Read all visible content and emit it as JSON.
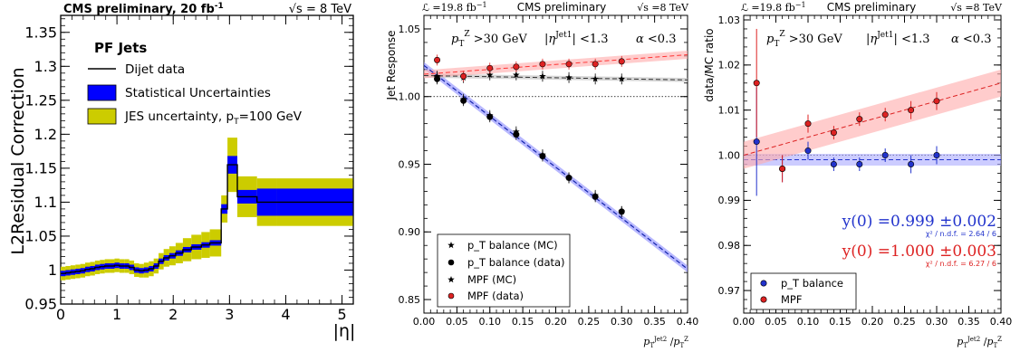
{
  "chart_data": [
    {
      "type": "line",
      "title_left": "CMS preliminary, 20 fb",
      "title_left_sup": "-1",
      "title_right": "√s = 8 TeV",
      "ylabel": "L2Residual Correction",
      "xlabel": "|η|",
      "xlim": [
        0,
        5.2
      ],
      "ylim": [
        0.95,
        1.375
      ],
      "xticks": [
        "0",
        "1",
        "2",
        "3",
        "4",
        "5"
      ],
      "yticks": [
        "0.95",
        "1",
        "1.05",
        "1.1",
        "1.15",
        "1.2",
        "1.25",
        "1.3",
        "1.35"
      ],
      "legend_header": "PF Jets",
      "legend": [
        "Dijet data",
        "Statistical Uncertainties",
        "JES uncertainty, p",
        "T",
        "=100 GeV"
      ],
      "colors": {
        "data": "#000000",
        "stat": "#0000ff",
        "jes": "#cccc00"
      },
      "bins": [
        {
          "lo": 0.0,
          "hi": 0.087,
          "v": 0.995,
          "s": 0.004,
          "j": 0.01
        },
        {
          "lo": 0.087,
          "hi": 0.174,
          "v": 0.996,
          "s": 0.004,
          "j": 0.01
        },
        {
          "lo": 0.174,
          "hi": 0.261,
          "v": 0.997,
          "s": 0.004,
          "j": 0.01
        },
        {
          "lo": 0.261,
          "hi": 0.348,
          "v": 0.998,
          "s": 0.004,
          "j": 0.01
        },
        {
          "lo": 0.348,
          "hi": 0.435,
          "v": 0.999,
          "s": 0.004,
          "j": 0.01
        },
        {
          "lo": 0.435,
          "hi": 0.522,
          "v": 1.001,
          "s": 0.004,
          "j": 0.01
        },
        {
          "lo": 0.522,
          "hi": 0.609,
          "v": 1.002,
          "s": 0.004,
          "j": 0.01
        },
        {
          "lo": 0.609,
          "hi": 0.696,
          "v": 1.004,
          "s": 0.004,
          "j": 0.01
        },
        {
          "lo": 0.696,
          "hi": 0.783,
          "v": 1.005,
          "s": 0.004,
          "j": 0.01
        },
        {
          "lo": 0.783,
          "hi": 0.87,
          "v": 1.006,
          "s": 0.004,
          "j": 0.01
        },
        {
          "lo": 0.87,
          "hi": 0.957,
          "v": 1.006,
          "s": 0.004,
          "j": 0.01
        },
        {
          "lo": 0.957,
          "hi": 1.044,
          "v": 1.007,
          "s": 0.004,
          "j": 0.01
        },
        {
          "lo": 1.044,
          "hi": 1.131,
          "v": 1.006,
          "s": 0.004,
          "j": 0.01
        },
        {
          "lo": 1.131,
          "hi": 1.218,
          "v": 1.006,
          "s": 0.004,
          "j": 0.01
        },
        {
          "lo": 1.218,
          "hi": 1.305,
          "v": 1.004,
          "s": 0.004,
          "j": 0.01
        },
        {
          "lo": 1.305,
          "hi": 1.392,
          "v": 1.0,
          "s": 0.004,
          "j": 0.01
        },
        {
          "lo": 1.392,
          "hi": 1.479,
          "v": 0.999,
          "s": 0.004,
          "j": 0.01
        },
        {
          "lo": 1.479,
          "hi": 1.566,
          "v": 1.0,
          "s": 0.004,
          "j": 0.011
        },
        {
          "lo": 1.566,
          "hi": 1.653,
          "v": 1.002,
          "s": 0.004,
          "j": 0.011
        },
        {
          "lo": 1.653,
          "hi": 1.74,
          "v": 1.006,
          "s": 0.004,
          "j": 0.011
        },
        {
          "lo": 1.74,
          "hi": 1.83,
          "v": 1.013,
          "s": 0.004,
          "j": 0.012
        },
        {
          "lo": 1.83,
          "hi": 1.93,
          "v": 1.018,
          "s": 0.004,
          "j": 0.013
        },
        {
          "lo": 1.93,
          "hi": 2.043,
          "v": 1.021,
          "s": 0.004,
          "j": 0.014
        },
        {
          "lo": 2.043,
          "hi": 2.172,
          "v": 1.025,
          "s": 0.004,
          "j": 0.015
        },
        {
          "lo": 2.172,
          "hi": 2.322,
          "v": 1.03,
          "s": 0.004,
          "j": 0.017
        },
        {
          "lo": 2.322,
          "hi": 2.5,
          "v": 1.034,
          "s": 0.004,
          "j": 0.018
        },
        {
          "lo": 2.5,
          "hi": 2.65,
          "v": 1.037,
          "s": 0.004,
          "j": 0.019
        },
        {
          "lo": 2.65,
          "hi": 2.853,
          "v": 1.04,
          "s": 0.004,
          "j": 0.02
        },
        {
          "lo": 2.853,
          "hi": 2.964,
          "v": 1.09,
          "s": 0.007,
          "j": 0.02
        },
        {
          "lo": 2.964,
          "hi": 3.139,
          "v": 1.155,
          "s": 0.013,
          "j": 0.04
        },
        {
          "lo": 3.139,
          "hi": 3.489,
          "v": 1.108,
          "s": 0.01,
          "j": 0.03
        },
        {
          "lo": 3.489,
          "hi": 3.839,
          "v": 1.1,
          "s": 0.02,
          "j": 0.035
        },
        {
          "lo": 3.839,
          "hi": 5.191,
          "v": 1.1,
          "s": 0.02,
          "j": 0.035
        }
      ]
    },
    {
      "type": "scatter",
      "header_left": "ℒ =19.8 fb",
      "header_left_sup": "−1",
      "header_center": "CMS preliminary",
      "header_right": "√s =8 TeV",
      "ylabel": "Jet Response",
      "cuts": [
        "p_T^Z >30 GeV",
        "|η^Jet1| <1.3",
        "α <0.3"
      ],
      "xlim": [
        0,
        0.4
      ],
      "ylim": [
        0.84,
        1.06
      ],
      "xticks": [
        "0.00",
        "0.05",
        "0.10",
        "0.15",
        "0.20",
        "0.25",
        "0.30",
        "0.35",
        "0.40"
      ],
      "yticks": [
        "0.85",
        "0.90",
        "0.95",
        "1.00",
        "1.05"
      ],
      "legend": [
        "p_T balance (MC)",
        "p_T balance (data)",
        "MPF (MC)",
        "MPF (data)"
      ],
      "x": [
        0.02,
        0.06,
        0.1,
        0.14,
        0.18,
        0.22,
        0.26,
        0.3
      ],
      "series": [
        {
          "name": "p_T balance (MC)",
          "marker": "star",
          "color": "#000000",
          "y": [
            1.014,
            0.998,
            0.986,
            0.974,
            0.957,
            0.94,
            0.927,
            0.915
          ],
          "fit": [
            1.023,
            -0.376
          ],
          "band": "#8888ff"
        },
        {
          "name": "p_T balance (data)",
          "marker": "circle",
          "color": "#000000",
          "y": [
            1.013,
            0.997,
            0.985,
            0.972,
            0.956,
            0.94,
            0.926,
            0.915
          ],
          "fit": [
            1.023,
            -0.376
          ],
          "band": "#8888ff"
        },
        {
          "name": "MPF (MC)",
          "marker": "star",
          "color": "#000000",
          "y": [
            1.015,
            1.014,
            1.016,
            1.016,
            1.015,
            1.014,
            1.013,
            1.013
          ],
          "fit": [
            1.0155,
            -0.008
          ],
          "band": "#bbbbbb"
        },
        {
          "name": "MPF (data)",
          "marker": "circle",
          "color": "#dd2222",
          "y": [
            1.027,
            1.015,
            1.021,
            1.022,
            1.024,
            1.024,
            1.024,
            1.026
          ],
          "fit": [
            1.0165,
            0.036
          ],
          "band": "#ffaaaa"
        }
      ]
    },
    {
      "type": "scatter",
      "header_left": "ℒ =19.8 fb",
      "header_left_sup": "−1",
      "header_center": "CMS preliminary",
      "header_right": "√s =8 TeV",
      "ylabel": "data/MC ratio",
      "cuts": [
        "p_T^Z >30 GeV",
        "|η^Jet1| <1.3",
        "α <0.3"
      ],
      "xlim": [
        0,
        0.4
      ],
      "ylim": [
        0.965,
        1.031
      ],
      "xticks": [
        "0.00",
        "0.05",
        "0.10",
        "0.15",
        "0.20",
        "0.25",
        "0.30",
        "0.35",
        "0.40"
      ],
      "yticks": [
        "0.97",
        "0.98",
        "0.99",
        "1.00",
        "1.01",
        "1.02",
        "1.03"
      ],
      "legend": [
        "p_T balance",
        "MPF"
      ],
      "fit_blue": "y(0) =0.999 ±0.002",
      "chi_blue": "χ² / n.d.f. = 2.64 / 6",
      "fit_red": "y(0) =1.000 ±0.003",
      "chi_red": "χ² / n.d.f. = 6.27 / 6",
      "x": [
        0.02,
        0.06,
        0.1,
        0.14,
        0.18,
        0.22,
        0.26,
        0.3
      ],
      "series": [
        {
          "name": "p_T balance",
          "color": "#2233cc",
          "y": [
            1.003,
            0.997,
            1.001,
            0.998,
            0.998,
            1.0,
            0.998,
            1.0
          ],
          "err": [
            0.012,
            0.003,
            0.002,
            0.0015,
            0.0015,
            0.0015,
            0.002,
            0.002
          ],
          "fit": [
            0.999,
            0.0
          ],
          "band_width": 0.0013,
          "band": "#aaaaff"
        },
        {
          "name": "MPF",
          "color": "#dd2222",
          "y": [
            1.016,
            0.997,
            1.007,
            1.005,
            1.008,
            1.009,
            1.01,
            1.012
          ],
          "err": [
            0.012,
            0.003,
            0.002,
            0.0015,
            0.0015,
            0.0015,
            0.002,
            0.002
          ],
          "fit": [
            1.0,
            0.04
          ],
          "band_width": 0.003,
          "band": "#ffaaaa"
        }
      ]
    }
  ]
}
